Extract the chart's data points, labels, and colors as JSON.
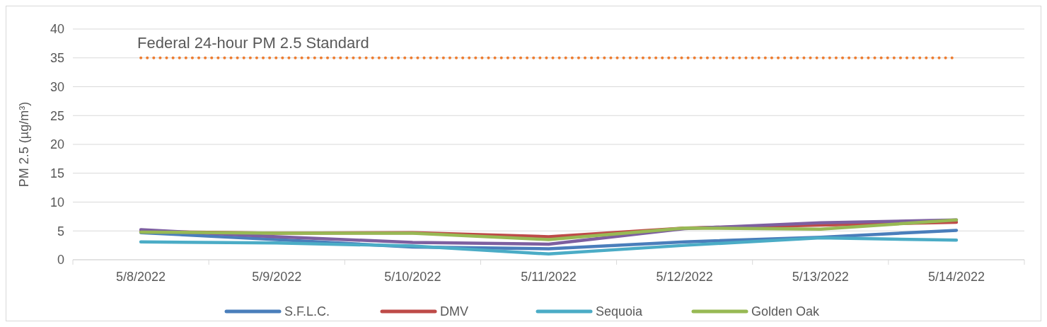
{
  "chart_data": {
    "type": "line",
    "ylabel": "PM 2.5 (µg/m³)",
    "categories": [
      "5/8/2022",
      "5/9/2022",
      "5/10/2022",
      "5/11/2022",
      "5/12/2022",
      "5/13/2022",
      "5/14/2022"
    ],
    "series": [
      {
        "name": "S.F.L.C.",
        "color": "#4a7ebb",
        "values": [
          4.7,
          3.5,
          2.2,
          1.9,
          3.1,
          3.9,
          5.1
        ]
      },
      {
        "name": "DMV",
        "color": "#be4b48",
        "values": [
          4.9,
          4.6,
          4.7,
          4.0,
          5.5,
          6.0,
          6.5
        ]
      },
      {
        "color": "#7d5fa0",
        "values": [
          5.2,
          4.0,
          3.0,
          2.7,
          5.4,
          6.4,
          6.9
        ]
      },
      {
        "name": "Sequoia",
        "color": "#4bacc6",
        "values": [
          3.1,
          2.9,
          2.4,
          1.0,
          2.5,
          3.8,
          3.4
        ]
      },
      {
        "name": "Golden Oak",
        "color": "#98b954",
        "values": [
          4.8,
          4.6,
          4.6,
          3.5,
          5.5,
          5.3,
          6.9
        ]
      },
      {
        "color": "#ed7d31",
        "line_style": "dotted",
        "values": [
          35,
          35,
          35,
          35,
          35,
          35,
          35
        ]
      }
    ],
    "annotations": [
      "Federal 24-hour PM 2.5 Standard"
    ],
    "ylim": [
      0,
      40
    ],
    "yticks": [
      0,
      5,
      10,
      15,
      20,
      25,
      30,
      35,
      40
    ],
    "grid": "y",
    "legend": "bottom",
    "marker": "none",
    "line_style": "solid"
  }
}
